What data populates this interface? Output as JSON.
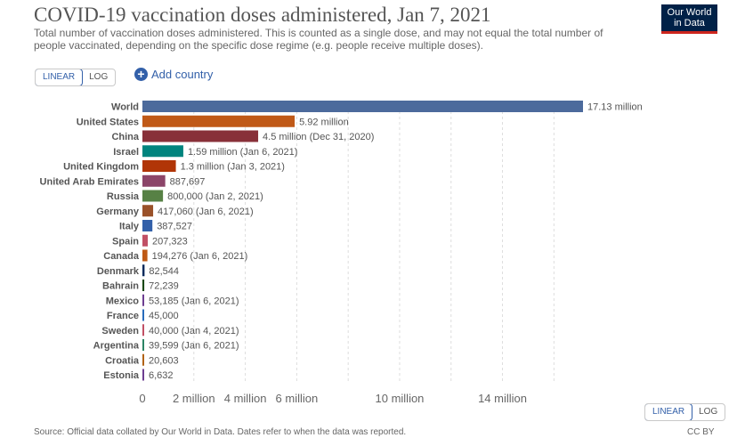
{
  "header": {
    "title": "COVID-19 vaccination doses administered, Jan 7, 2021",
    "subtitle": "Total number of vaccination doses administered. This is counted as a single dose, and may not equal the total number of people vaccinated, depending on the specific dose regime (e.g. people receive multiple doses).",
    "logo_line1": "Our World",
    "logo_line2": "in Data"
  },
  "controls": {
    "linear_label": "LINEAR",
    "log_label": "LOG",
    "add_country_label": "Add country",
    "add_country_icon": "+"
  },
  "footer": {
    "source": "Source: Official data collated by Our World in Data. Dates refer to when the data was reported.",
    "license": "CC BY"
  },
  "chart_data": {
    "type": "bar",
    "orientation": "horizontal",
    "title": "COVID-19 vaccination doses administered, Jan 7, 2021",
    "xlim": [
      0,
      18000000
    ],
    "x_ticks": [
      {
        "value": 0,
        "label": "0"
      },
      {
        "value": 2000000,
        "label": "2 million"
      },
      {
        "value": 4000000,
        "label": "4 million"
      },
      {
        "value": 6000000,
        "label": "6 million"
      },
      {
        "value": 10000000,
        "label": "10 million"
      },
      {
        "value": 14000000,
        "label": "14 million"
      }
    ],
    "categories": [
      "World",
      "United States",
      "China",
      "Israel",
      "United Kingdom",
      "United Arab Emirates",
      "Russia",
      "Germany",
      "Italy",
      "Spain",
      "Canada",
      "Denmark",
      "Bahrain",
      "Mexico",
      "France",
      "Sweden",
      "Argentina",
      "Croatia",
      "Estonia"
    ],
    "values": [
      17130000,
      5920000,
      4500000,
      1590000,
      1300000,
      887697,
      800000,
      417060,
      387527,
      207323,
      194276,
      82544,
      72239,
      53185,
      45000,
      40000,
      39599,
      20603,
      6632
    ],
    "data_labels": [
      "17.13 million",
      "5.92 million",
      "4.5 million (Dec 31, 2020)",
      "1.59 million (Jan 6, 2021)",
      "1.3 million (Jan 3, 2021)",
      "887,697",
      "800,000 (Jan 2, 2021)",
      "417,060 (Jan 6, 2021)",
      "387,527",
      "207,323",
      "194,276 (Jan 6, 2021)",
      "82,544",
      "72,239",
      "53,185 (Jan 6, 2021)",
      "45,000",
      "40,000 (Jan 4, 2021)",
      "39,599 (Jan 6, 2021)",
      "20,603",
      "6,632"
    ],
    "colors": [
      "#4c6a9c",
      "#c05917",
      "#883039",
      "#00847e",
      "#b13507",
      "#8c4569",
      "#578145",
      "#9a5129",
      "#3360a9",
      "#c15065",
      "#be5915",
      "#00295b",
      "#18470f",
      "#6d3e91",
      "#286bbb",
      "#c15065",
      "#2c8465",
      "#b16214",
      "#6d3e91"
    ]
  }
}
